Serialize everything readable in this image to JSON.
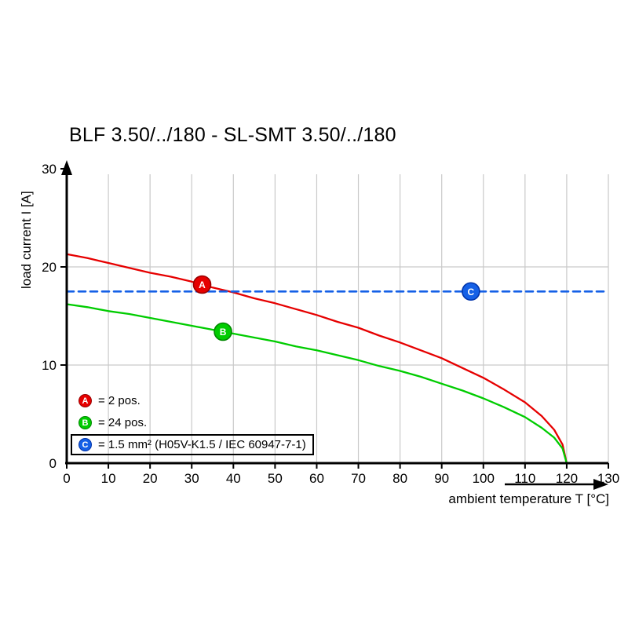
{
  "title": "BLF 3.50/../180 - SL-SMT 3.50/../180",
  "axes": {
    "y_label": "load current I [A]",
    "x_label": "ambient temperature T [°C]",
    "x_ticks": [
      0,
      10,
      20,
      30,
      40,
      50,
      60,
      70,
      80,
      90,
      100,
      110,
      120,
      130
    ],
    "y_ticks": [
      0,
      10,
      20,
      30
    ],
    "y_gridlines": [
      10,
      20
    ]
  },
  "legend": [
    {
      "id": "A",
      "color": "#e60000",
      "ring": "#990000",
      "text": "= 2 pos.",
      "boxed": false
    },
    {
      "id": "B",
      "color": "#00cc00",
      "ring": "#008800",
      "text": "= 24 pos.",
      "boxed": false
    },
    {
      "id": "C",
      "color": "#1560e6",
      "ring": "#0033aa",
      "text": "= 1.5 mm² (H05V-K1.5 / IEC 60947-7-1)",
      "boxed": true
    }
  ],
  "chart_data": {
    "type": "line",
    "title": "BLF 3.50/../180 - SL-SMT 3.50/../180",
    "xlabel": "ambient temperature T [°C]",
    "ylabel": "load current I [A]",
    "xlim": [
      0,
      130
    ],
    "ylim": [
      0,
      30
    ],
    "grid": true,
    "series": [
      {
        "name": "A = 2 pos.",
        "color": "#e60000",
        "style": "solid",
        "points": [
          [
            0,
            21.3
          ],
          [
            5,
            20.9
          ],
          [
            10,
            20.4
          ],
          [
            15,
            19.9
          ],
          [
            20,
            19.4
          ],
          [
            25,
            19.0
          ],
          [
            30,
            18.5
          ],
          [
            35,
            17.9
          ],
          [
            40,
            17.4
          ],
          [
            45,
            16.8
          ],
          [
            50,
            16.3
          ],
          [
            55,
            15.7
          ],
          [
            60,
            15.1
          ],
          [
            65,
            14.4
          ],
          [
            70,
            13.8
          ],
          [
            75,
            13.0
          ],
          [
            80,
            12.3
          ],
          [
            85,
            11.5
          ],
          [
            90,
            10.7
          ],
          [
            95,
            9.7
          ],
          [
            100,
            8.7
          ],
          [
            105,
            7.5
          ],
          [
            110,
            6.2
          ],
          [
            114,
            4.8
          ],
          [
            117,
            3.4
          ],
          [
            119,
            1.9
          ],
          [
            120,
            0
          ]
        ]
      },
      {
        "name": "B = 24 pos.",
        "color": "#00cc00",
        "style": "solid",
        "points": [
          [
            0,
            16.2
          ],
          [
            5,
            15.9
          ],
          [
            10,
            15.5
          ],
          [
            15,
            15.2
          ],
          [
            20,
            14.8
          ],
          [
            25,
            14.4
          ],
          [
            30,
            14.0
          ],
          [
            35,
            13.6
          ],
          [
            40,
            13.2
          ],
          [
            45,
            12.8
          ],
          [
            50,
            12.4
          ],
          [
            55,
            11.9
          ],
          [
            60,
            11.5
          ],
          [
            65,
            11.0
          ],
          [
            70,
            10.5
          ],
          [
            75,
            9.9
          ],
          [
            80,
            9.4
          ],
          [
            85,
            8.8
          ],
          [
            90,
            8.1
          ],
          [
            95,
            7.4
          ],
          [
            100,
            6.6
          ],
          [
            105,
            5.7
          ],
          [
            110,
            4.7
          ],
          [
            114,
            3.6
          ],
          [
            117,
            2.6
          ],
          [
            119,
            1.5
          ],
          [
            120,
            0
          ]
        ]
      },
      {
        "name": "C = 1.5 mm² (H05V-K1.5 / IEC 60947-7-1)",
        "color": "#1560e6",
        "style": "dashed",
        "points": [
          [
            0,
            17.5
          ],
          [
            130,
            17.5
          ]
        ]
      }
    ],
    "markers": [
      {
        "label": "A",
        "x": 32.5,
        "y": 18.2,
        "color": "#e60000",
        "ring": "#990000"
      },
      {
        "label": "B",
        "x": 37.5,
        "y": 13.4,
        "color": "#00cc00",
        "ring": "#008800"
      },
      {
        "label": "C",
        "x": 97,
        "y": 17.5,
        "color": "#1560e6",
        "ring": "#0033aa"
      }
    ]
  }
}
